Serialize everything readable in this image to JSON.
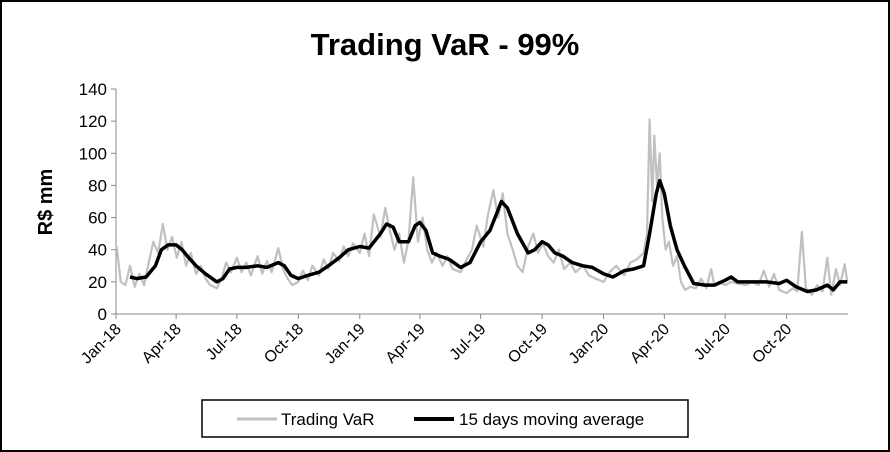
{
  "chart_data": {
    "type": "line",
    "title": "Trading VaR - 99%",
    "ylabel": "R$ mm",
    "xlabel": "",
    "ylim": [
      0,
      140
    ],
    "yticks": [
      0,
      20,
      40,
      60,
      80,
      100,
      120,
      140
    ],
    "xlim": [
      "2018-01-01",
      "2021-01-01"
    ],
    "xticks": [
      {
        "date": "2018-01-01",
        "label": "Jan-18"
      },
      {
        "date": "2018-04-01",
        "label": "Apr-18"
      },
      {
        "date": "2018-07-01",
        "label": "Jul-18"
      },
      {
        "date": "2018-10-01",
        "label": "Oct-18"
      },
      {
        "date": "2019-01-01",
        "label": "Jan-19"
      },
      {
        "date": "2019-04-01",
        "label": "Apr-19"
      },
      {
        "date": "2019-07-01",
        "label": "Jul-19"
      },
      {
        "date": "2019-10-01",
        "label": "Oct-19"
      },
      {
        "date": "2020-01-01",
        "label": "Jan-20"
      },
      {
        "date": "2020-04-01",
        "label": "Apr-20"
      },
      {
        "date": "2020-07-01",
        "label": "Jul-20"
      },
      {
        "date": "2020-10-01",
        "label": "Oct-20"
      }
    ],
    "grid": false,
    "legend_position": "bottom",
    "series": [
      {
        "name": "Trading VaR",
        "color": "#c0c0c0",
        "points": [
          [
            "2018-01-02",
            42
          ],
          [
            "2018-01-08",
            20
          ],
          [
            "2018-01-15",
            18
          ],
          [
            "2018-01-22",
            30
          ],
          [
            "2018-01-29",
            17
          ],
          [
            "2018-02-05",
            25
          ],
          [
            "2018-02-12",
            18
          ],
          [
            "2018-02-19",
            32
          ],
          [
            "2018-02-26",
            45
          ],
          [
            "2018-03-05",
            38
          ],
          [
            "2018-03-12",
            56
          ],
          [
            "2018-03-19",
            40
          ],
          [
            "2018-03-26",
            48
          ],
          [
            "2018-04-02",
            35
          ],
          [
            "2018-04-09",
            45
          ],
          [
            "2018-04-16",
            30
          ],
          [
            "2018-04-23",
            38
          ],
          [
            "2018-05-01",
            25
          ],
          [
            "2018-05-08",
            30
          ],
          [
            "2018-05-15",
            22
          ],
          [
            "2018-05-22",
            18
          ],
          [
            "2018-06-01",
            16
          ],
          [
            "2018-06-08",
            22
          ],
          [
            "2018-06-15",
            32
          ],
          [
            "2018-06-22",
            26
          ],
          [
            "2018-07-01",
            35
          ],
          [
            "2018-07-08",
            26
          ],
          [
            "2018-07-15",
            32
          ],
          [
            "2018-07-22",
            24
          ],
          [
            "2018-08-01",
            36
          ],
          [
            "2018-08-08",
            25
          ],
          [
            "2018-08-15",
            33
          ],
          [
            "2018-08-22",
            26
          ],
          [
            "2018-09-01",
            41
          ],
          [
            "2018-09-08",
            28
          ],
          [
            "2018-09-15",
            22
          ],
          [
            "2018-09-22",
            18
          ],
          [
            "2018-10-01",
            20
          ],
          [
            "2018-10-08",
            27
          ],
          [
            "2018-10-15",
            21
          ],
          [
            "2018-10-22",
            30
          ],
          [
            "2018-11-01",
            24
          ],
          [
            "2018-11-08",
            34
          ],
          [
            "2018-11-15",
            28
          ],
          [
            "2018-11-22",
            38
          ],
          [
            "2018-12-01",
            33
          ],
          [
            "2018-12-08",
            42
          ],
          [
            "2018-12-15",
            36
          ],
          [
            "2018-12-22",
            44
          ],
          [
            "2019-01-01",
            38
          ],
          [
            "2019-01-08",
            50
          ],
          [
            "2019-01-15",
            36
          ],
          [
            "2019-01-22",
            62
          ],
          [
            "2019-02-01",
            48
          ],
          [
            "2019-02-08",
            66
          ],
          [
            "2019-02-15",
            52
          ],
          [
            "2019-02-22",
            40
          ],
          [
            "2019-03-01",
            50
          ],
          [
            "2019-03-08",
            32
          ],
          [
            "2019-03-15",
            46
          ],
          [
            "2019-03-22",
            85
          ],
          [
            "2019-03-29",
            45
          ],
          [
            "2019-04-05",
            60
          ],
          [
            "2019-04-12",
            40
          ],
          [
            "2019-04-19",
            32
          ],
          [
            "2019-04-26",
            38
          ],
          [
            "2019-05-05",
            30
          ],
          [
            "2019-05-12",
            36
          ],
          [
            "2019-05-20",
            28
          ],
          [
            "2019-06-01",
            26
          ],
          [
            "2019-06-10",
            34
          ],
          [
            "2019-06-18",
            40
          ],
          [
            "2019-06-25",
            55
          ],
          [
            "2019-07-05",
            42
          ],
          [
            "2019-07-12",
            62
          ],
          [
            "2019-07-20",
            77
          ],
          [
            "2019-07-27",
            60
          ],
          [
            "2019-08-03",
            75
          ],
          [
            "2019-08-10",
            50
          ],
          [
            "2019-08-18",
            40
          ],
          [
            "2019-08-25",
            30
          ],
          [
            "2019-09-02",
            26
          ],
          [
            "2019-09-10",
            42
          ],
          [
            "2019-09-18",
            50
          ],
          [
            "2019-09-25",
            38
          ],
          [
            "2019-10-02",
            44
          ],
          [
            "2019-10-10",
            36
          ],
          [
            "2019-10-18",
            32
          ],
          [
            "2019-10-26",
            40
          ],
          [
            "2019-11-03",
            28
          ],
          [
            "2019-11-12",
            32
          ],
          [
            "2019-11-20",
            26
          ],
          [
            "2019-12-01",
            30
          ],
          [
            "2019-12-10",
            24
          ],
          [
            "2019-12-20",
            22
          ],
          [
            "2020-01-01",
            20
          ],
          [
            "2020-01-10",
            26
          ],
          [
            "2020-01-20",
            30
          ],
          [
            "2020-02-01",
            24
          ],
          [
            "2020-02-10",
            32
          ],
          [
            "2020-02-20",
            34
          ],
          [
            "2020-03-01",
            38
          ],
          [
            "2020-03-06",
            50
          ],
          [
            "2020-03-10",
            121
          ],
          [
            "2020-03-14",
            70
          ],
          [
            "2020-03-17",
            111
          ],
          [
            "2020-03-21",
            80
          ],
          [
            "2020-03-25",
            100
          ],
          [
            "2020-03-29",
            60
          ],
          [
            "2020-04-03",
            40
          ],
          [
            "2020-04-08",
            45
          ],
          [
            "2020-04-14",
            30
          ],
          [
            "2020-04-20",
            36
          ],
          [
            "2020-04-26",
            20
          ],
          [
            "2020-05-02",
            15
          ],
          [
            "2020-05-10",
            17
          ],
          [
            "2020-05-18",
            16
          ],
          [
            "2020-05-26",
            22
          ],
          [
            "2020-06-03",
            16
          ],
          [
            "2020-06-10",
            28
          ],
          [
            "2020-06-15",
            18
          ],
          [
            "2020-06-22",
            20
          ],
          [
            "2020-07-01",
            18
          ],
          [
            "2020-07-10",
            20
          ],
          [
            "2020-07-20",
            19
          ],
          [
            "2020-08-01",
            18
          ],
          [
            "2020-08-10",
            20
          ],
          [
            "2020-08-20",
            18
          ],
          [
            "2020-08-28",
            27
          ],
          [
            "2020-09-05",
            17
          ],
          [
            "2020-09-12",
            25
          ],
          [
            "2020-09-20",
            15
          ],
          [
            "2020-10-01",
            13
          ],
          [
            "2020-10-10",
            16
          ],
          [
            "2020-10-17",
            14
          ],
          [
            "2020-10-24",
            51
          ],
          [
            "2020-10-30",
            16
          ],
          [
            "2020-11-08",
            12
          ],
          [
            "2020-11-16",
            18
          ],
          [
            "2020-11-24",
            14
          ],
          [
            "2020-12-01",
            35
          ],
          [
            "2020-12-07",
            12
          ],
          [
            "2020-12-14",
            28
          ],
          [
            "2020-12-20",
            18
          ],
          [
            "2020-12-27",
            31
          ],
          [
            "2020-12-31",
            20
          ]
        ]
      },
      {
        "name": "15 days moving average",
        "color": "#000000",
        "points": [
          [
            "2018-01-22",
            23
          ],
          [
            "2018-02-01",
            22
          ],
          [
            "2018-02-15",
            23
          ],
          [
            "2018-03-01",
            30
          ],
          [
            "2018-03-10",
            40
          ],
          [
            "2018-03-20",
            43
          ],
          [
            "2018-04-01",
            43
          ],
          [
            "2018-04-10",
            40
          ],
          [
            "2018-04-20",
            35
          ],
          [
            "2018-05-01",
            30
          ],
          [
            "2018-05-15",
            25
          ],
          [
            "2018-06-01",
            20
          ],
          [
            "2018-06-10",
            22
          ],
          [
            "2018-06-20",
            28
          ],
          [
            "2018-07-01",
            29
          ],
          [
            "2018-07-15",
            29
          ],
          [
            "2018-08-01",
            30
          ],
          [
            "2018-08-15",
            29
          ],
          [
            "2018-09-01",
            32
          ],
          [
            "2018-09-10",
            30
          ],
          [
            "2018-09-20",
            24
          ],
          [
            "2018-10-01",
            22
          ],
          [
            "2018-10-15",
            24
          ],
          [
            "2018-11-01",
            26
          ],
          [
            "2018-11-15",
            30
          ],
          [
            "2018-12-01",
            35
          ],
          [
            "2018-12-15",
            40
          ],
          [
            "2019-01-01",
            42
          ],
          [
            "2019-01-15",
            41
          ],
          [
            "2019-02-01",
            50
          ],
          [
            "2019-02-10",
            56
          ],
          [
            "2019-02-20",
            54
          ],
          [
            "2019-03-01",
            45
          ],
          [
            "2019-03-15",
            45
          ],
          [
            "2019-03-25",
            55
          ],
          [
            "2019-04-01",
            57
          ],
          [
            "2019-04-10",
            52
          ],
          [
            "2019-04-20",
            38
          ],
          [
            "2019-05-01",
            36
          ],
          [
            "2019-05-15",
            34
          ],
          [
            "2019-06-01",
            29
          ],
          [
            "2019-06-15",
            32
          ],
          [
            "2019-07-01",
            45
          ],
          [
            "2019-07-15",
            52
          ],
          [
            "2019-08-01",
            70
          ],
          [
            "2019-08-10",
            66
          ],
          [
            "2019-08-25",
            50
          ],
          [
            "2019-09-10",
            38
          ],
          [
            "2019-09-20",
            40
          ],
          [
            "2019-10-01",
            45
          ],
          [
            "2019-10-10",
            43
          ],
          [
            "2019-10-20",
            38
          ],
          [
            "2019-11-01",
            36
          ],
          [
            "2019-11-15",
            32
          ],
          [
            "2019-12-01",
            30
          ],
          [
            "2019-12-15",
            29
          ],
          [
            "2020-01-01",
            25
          ],
          [
            "2020-01-15",
            23
          ],
          [
            "2020-02-01",
            27
          ],
          [
            "2020-02-15",
            28
          ],
          [
            "2020-03-01",
            30
          ],
          [
            "2020-03-10",
            50
          ],
          [
            "2020-03-20",
            75
          ],
          [
            "2020-03-25",
            83
          ],
          [
            "2020-04-01",
            75
          ],
          [
            "2020-04-10",
            55
          ],
          [
            "2020-04-20",
            40
          ],
          [
            "2020-05-01",
            30
          ],
          [
            "2020-05-15",
            19
          ],
          [
            "2020-06-01",
            18
          ],
          [
            "2020-06-15",
            18
          ],
          [
            "2020-07-01",
            21
          ],
          [
            "2020-07-10",
            23
          ],
          [
            "2020-07-20",
            20
          ],
          [
            "2020-08-01",
            20
          ],
          [
            "2020-09-01",
            20
          ],
          [
            "2020-09-20",
            19
          ],
          [
            "2020-10-01",
            21
          ],
          [
            "2020-10-15",
            17
          ],
          [
            "2020-11-01",
            14
          ],
          [
            "2020-11-15",
            15
          ],
          [
            "2020-12-01",
            18
          ],
          [
            "2020-12-10",
            15
          ],
          [
            "2020-12-20",
            20
          ],
          [
            "2020-12-31",
            20
          ]
        ]
      }
    ]
  }
}
